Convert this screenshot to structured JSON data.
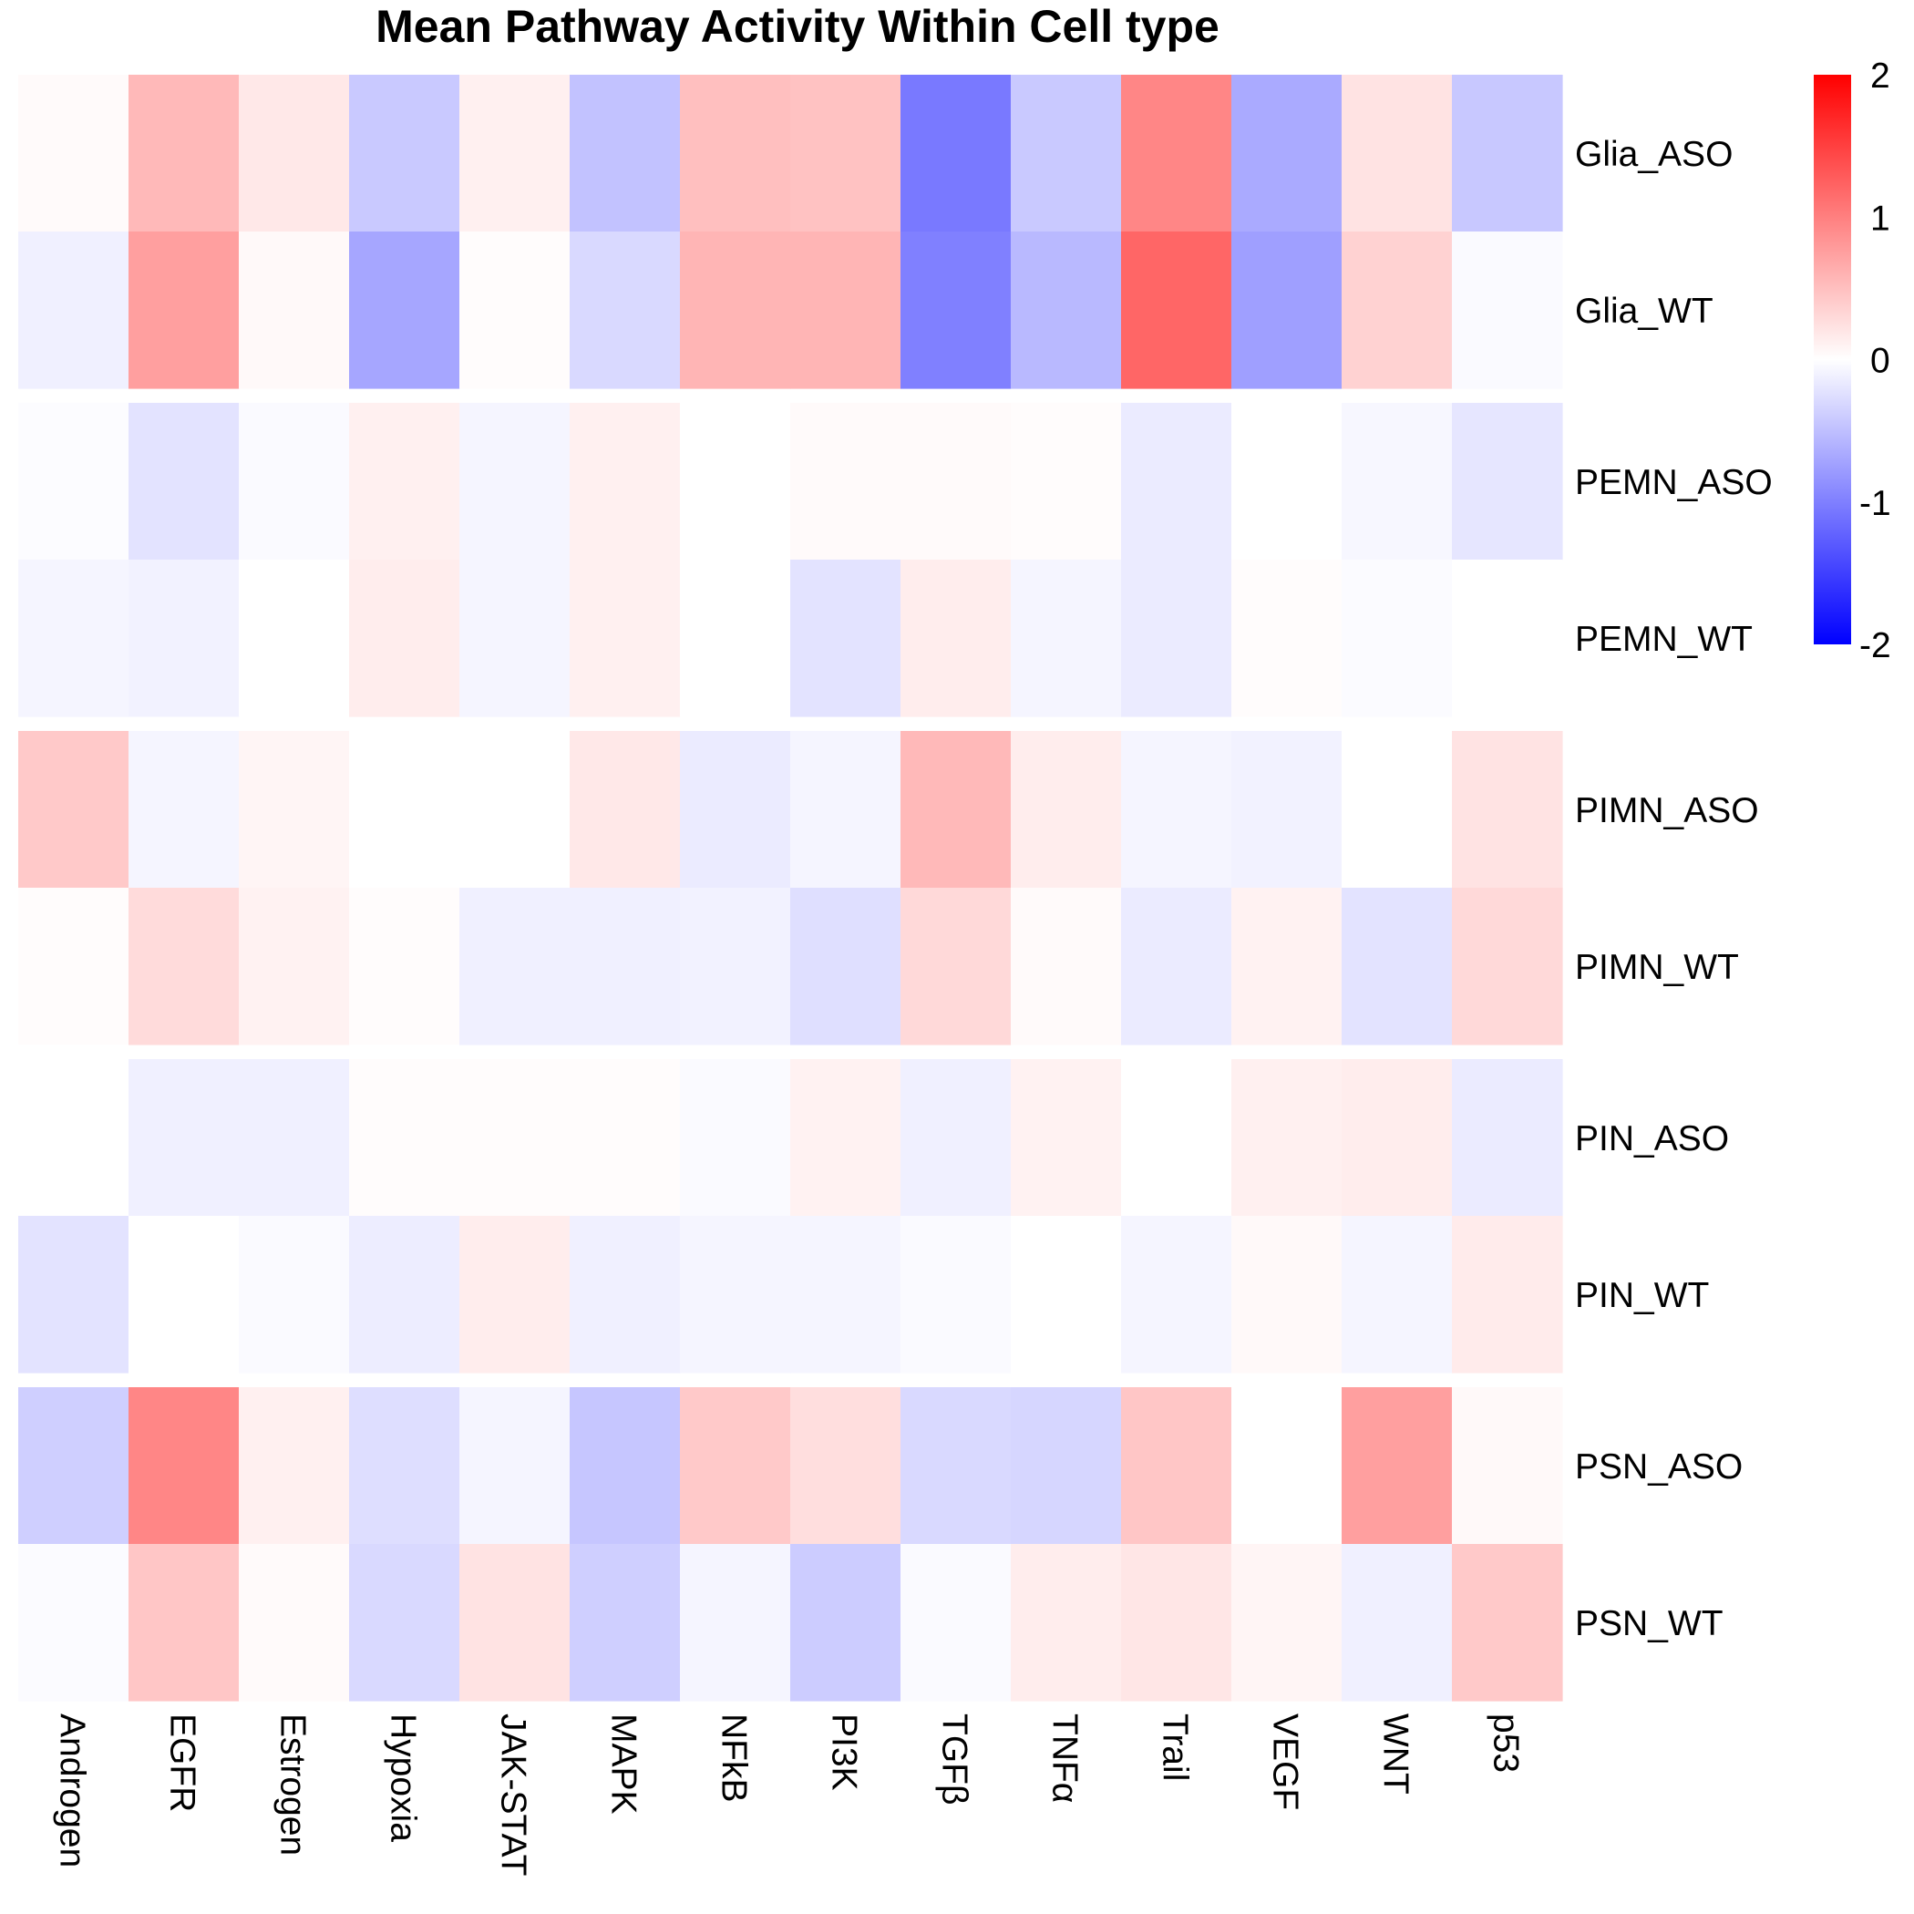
{
  "chart_data": {
    "type": "heatmap",
    "title": "Mean Pathway Activity Within Cell type",
    "columns": [
      "Androgen",
      "EGFR",
      "Estrogen",
      "Hypoxia",
      "JAK-STAT",
      "MAPK",
      "NFkB",
      "PI3K",
      "TGFβ",
      "TNFα",
      "Trail",
      "VEGF",
      "WNT",
      "p53"
    ],
    "rows": [
      "Glia_ASO",
      "Glia_WT",
      "PEMN_ASO",
      "PEMN_WT",
      "PIMN_ASO",
      "PIMN_WT",
      "PIN_ASO",
      "PIN_WT",
      "PSN_ASO",
      "PSN_WT"
    ],
    "row_groups": [
      [
        "Glia_ASO",
        "Glia_WT"
      ],
      [
        "PEMN_ASO",
        "PEMN_WT"
      ],
      [
        "PIMN_ASO",
        "PIMN_WT"
      ],
      [
        "PIN_ASO",
        "PIN_WT"
      ],
      [
        "PSN_ASO",
        "PSN_WT"
      ]
    ],
    "values": [
      [
        0.04,
        0.55,
        0.18,
        -0.42,
        0.12,
        -0.48,
        0.5,
        0.48,
        -1.05,
        -0.42,
        0.95,
        -0.67,
        0.22,
        -0.43
      ],
      [
        -0.12,
        0.75,
        0.05,
        -0.7,
        0.02,
        -0.3,
        0.58,
        0.58,
        -1.0,
        -0.55,
        1.2,
        -0.75,
        0.35,
        -0.04
      ],
      [
        -0.02,
        -0.22,
        -0.04,
        0.12,
        -0.08,
        0.12,
        0.0,
        0.04,
        0.04,
        0.02,
        -0.16,
        0.0,
        -0.06,
        -0.2
      ],
      [
        -0.08,
        -0.1,
        0.0,
        0.14,
        -0.08,
        0.12,
        0.0,
        -0.22,
        0.14,
        -0.08,
        -0.16,
        0.02,
        -0.03,
        0.0
      ],
      [
        0.42,
        -0.08,
        0.08,
        0.0,
        0.0,
        0.18,
        -0.16,
        -0.08,
        0.55,
        0.14,
        -0.08,
        -0.1,
        0.0,
        0.22
      ],
      [
        0.02,
        0.28,
        0.1,
        0.02,
        -0.12,
        -0.12,
        -0.1,
        -0.25,
        0.3,
        0.04,
        -0.16,
        0.1,
        -0.22,
        0.3
      ],
      [
        0.0,
        -0.12,
        -0.12,
        0.02,
        0.02,
        0.02,
        -0.04,
        0.1,
        -0.12,
        0.1,
        0.0,
        0.12,
        0.14,
        -0.16
      ],
      [
        -0.22,
        0.0,
        -0.04,
        -0.14,
        0.14,
        -0.12,
        -0.08,
        -0.08,
        -0.04,
        0.0,
        -0.08,
        0.05,
        -0.08,
        0.16
      ],
      [
        -0.38,
        0.95,
        0.12,
        -0.26,
        -0.08,
        -0.45,
        0.42,
        0.26,
        -0.3,
        -0.32,
        0.45,
        0.0,
        0.75,
        0.05
      ],
      [
        -0.03,
        0.45,
        0.04,
        -0.3,
        0.22,
        -0.38,
        -0.08,
        -0.4,
        -0.04,
        0.14,
        0.2,
        0.08,
        -0.12,
        0.42
      ]
    ],
    "color_scale": {
      "min": -2,
      "mid": 0,
      "max": 2,
      "low_color": "#0000FF",
      "mid_color": "#FFFFFF",
      "high_color": "#FF0000"
    },
    "legend": {
      "placement": "right",
      "ticks": [
        "2",
        "1",
        "0",
        "-1",
        "-2"
      ]
    }
  }
}
